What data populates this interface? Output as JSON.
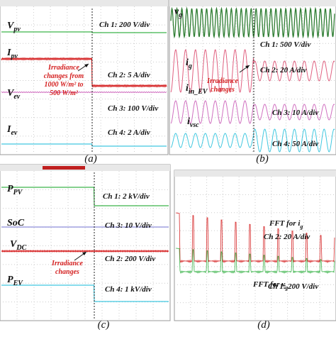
{
  "panels": [
    {
      "caption": "(a)",
      "signals": [
        {
          "main": "V",
          "sub": "pv"
        },
        {
          "main": "I",
          "sub": "pv"
        },
        {
          "main": "V",
          "sub": "ev"
        },
        {
          "main": "I",
          "sub": "ev"
        }
      ],
      "channels": [
        "Ch 1: 200 V/div",
        "Ch 2: 5 A/div",
        "Ch 3: 100 V/div",
        "Ch 4: 2 A/div"
      ],
      "annotation": [
        "Irradiance",
        "changes from",
        "1000 W/m² to",
        "500 W/m²"
      ]
    },
    {
      "caption": "(b)",
      "signals": [
        {
          "main": "v",
          "sub": "g"
        },
        {
          "main": "i",
          "sub": "g"
        },
        {
          "main": "i",
          "sub": "in_EV"
        },
        {
          "main": "i",
          "sub": "vsc"
        }
      ],
      "channels": [
        "Ch 1: 500 V/div",
        "Ch 2: 20 A/div",
        "Ch 3: 10 A/div",
        "Ch 4: 50 A/div"
      ],
      "annotation": [
        "Irradiance",
        "changes"
      ]
    },
    {
      "caption": "(c)",
      "signals": [
        {
          "main": "P",
          "sub": "PV"
        },
        {
          "main": "SoC",
          "sub": ""
        },
        {
          "main": "V",
          "sub": "DC"
        },
        {
          "main": "P",
          "sub": "EV"
        }
      ],
      "channels": [
        "Ch 1: 2 kV/div",
        "Ch 3: 10 V/div",
        "Ch 2: 200 V/div",
        "Ch 4: 1 kV/div"
      ],
      "annotation": [
        "Irradiance",
        "changes"
      ]
    },
    {
      "caption": "(d)",
      "signals": [
        {
          "main": "FFT for i",
          "sub": "g"
        },
        {
          "main": "FFT for v",
          "sub": "g"
        }
      ],
      "channels": [
        "Ch 2: 20 A/div",
        "Ch 1: 200 V/div"
      ]
    }
  ]
}
